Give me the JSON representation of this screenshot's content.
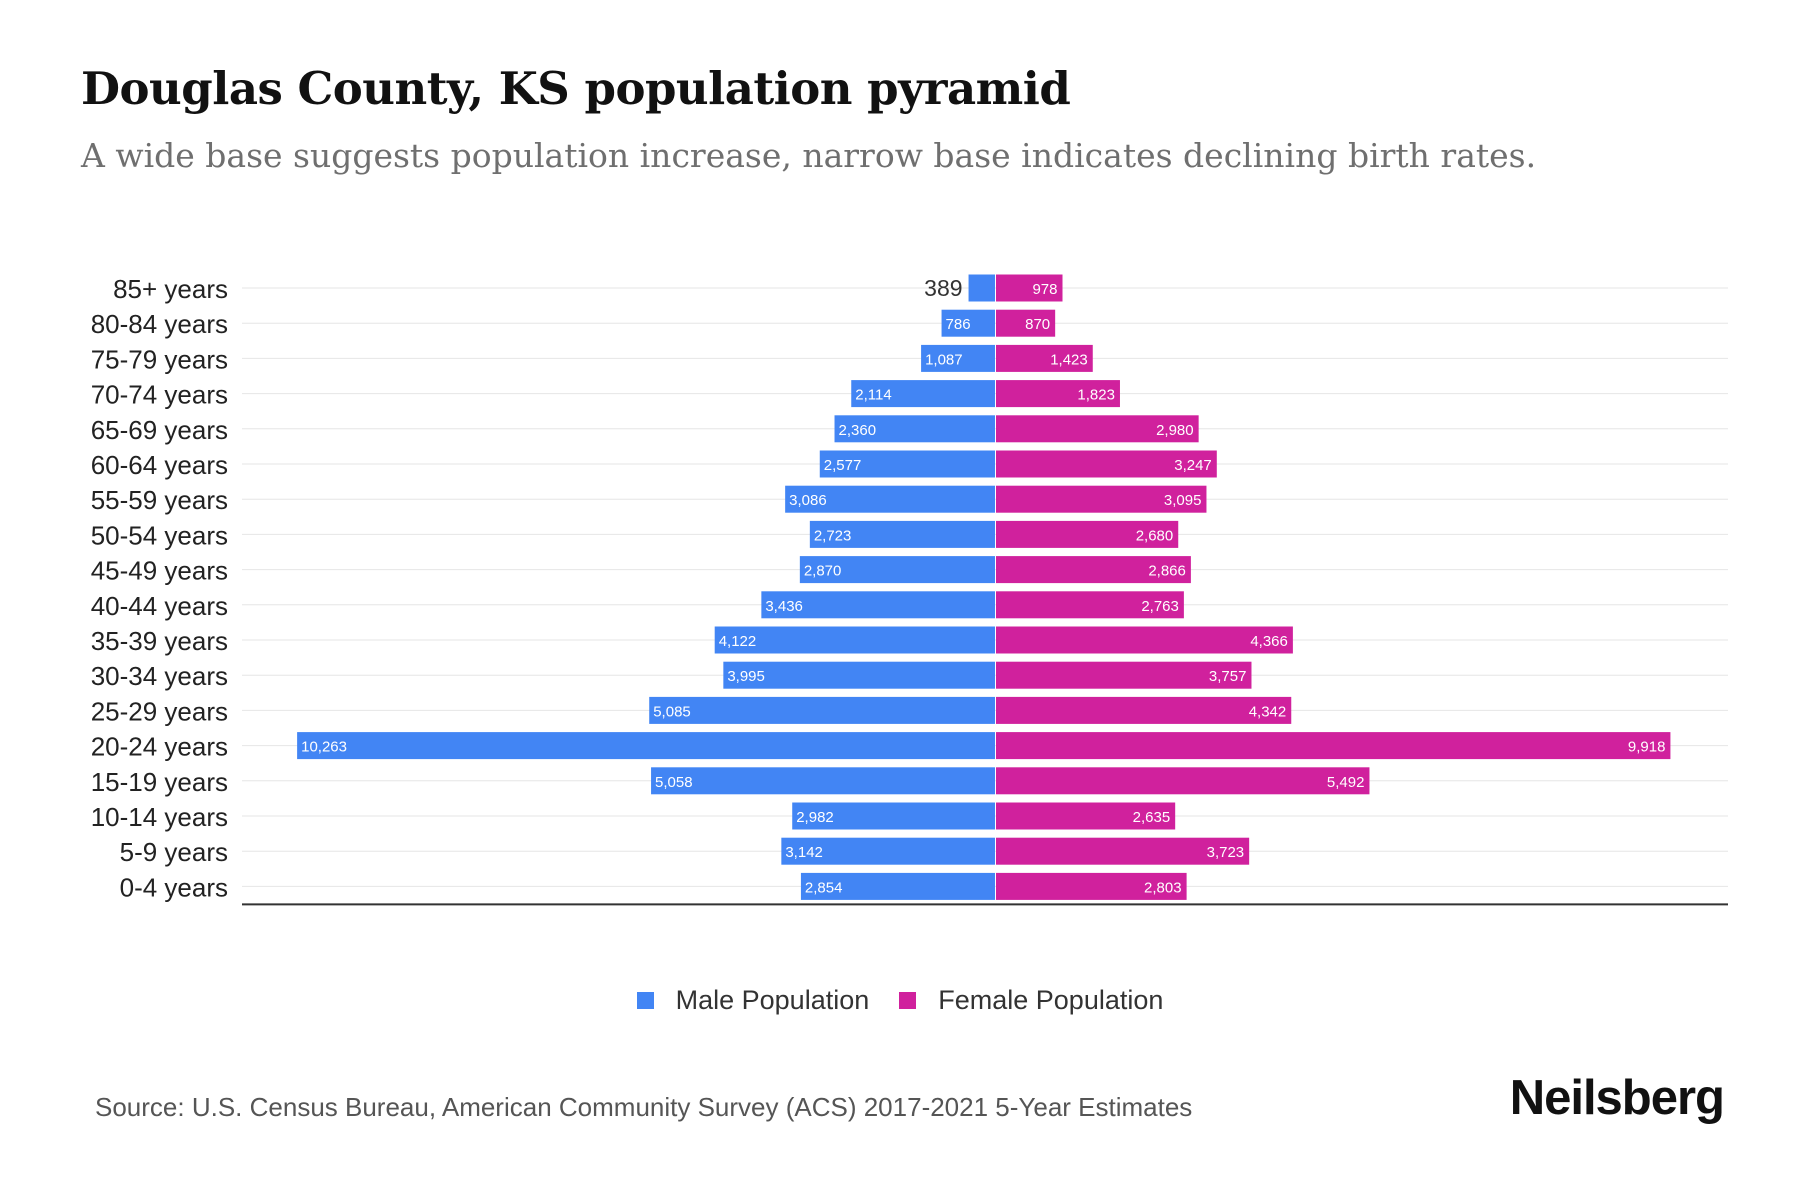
{
  "title": "Douglas County, KS population pyramid",
  "subtitle": "A wide base suggests population increase, narrow base indicates declining birth rates.",
  "source": "Source: U.S. Census Bureau, American Community Survey (ACS) 2017-2021 5-Year Estimates",
  "brand": "Neilsberg",
  "colors": {
    "male": "#4285f4",
    "female": "#d0219d",
    "grid": "#e6e6e6",
    "axis": "#333333"
  },
  "chart_data": {
    "type": "bar",
    "orientation": "horizontal",
    "categories": [
      "85+ years",
      "80-84 years",
      "75-79 years",
      "70-74 years",
      "65-69 years",
      "60-64 years",
      "55-59 years",
      "50-54 years",
      "45-49 years",
      "40-44 years",
      "35-39 years",
      "30-34 years",
      "25-29 years",
      "20-24 years",
      "15-19 years",
      "10-14 years",
      "5-9 years",
      "0-4 years"
    ],
    "series": [
      {
        "name": "Male Population",
        "color": "#4285f4",
        "values": [
          389,
          786,
          1087,
          2114,
          2360,
          2577,
          3086,
          2723,
          2870,
          3436,
          4122,
          3995,
          5085,
          10263,
          5058,
          2982,
          3142,
          2854
        ]
      },
      {
        "name": "Female Population",
        "color": "#d0219d",
        "values": [
          978,
          870,
          1423,
          1823,
          2980,
          3247,
          3095,
          2680,
          2866,
          2763,
          4366,
          3757,
          4342,
          9918,
          5492,
          2635,
          3723,
          2803
        ]
      }
    ],
    "data_labels": {
      "male": [
        "389",
        "786",
        "1,087",
        "2,114",
        "2,360",
        "2,577",
        "3,086",
        "2,723",
        "2,870",
        "3,436",
        "4,122",
        "3,995",
        "5,085",
        "10,263",
        "5,058",
        "2,982",
        "3,142",
        "2,854"
      ],
      "female": [
        "978",
        "870",
        "1,423",
        "1,823",
        "2,980",
        "3,247",
        "3,095",
        "2,680",
        "2,866",
        "2,763",
        "4,366",
        "3,757",
        "4,342",
        "9,918",
        "5,492",
        "2,635",
        "3,723",
        "2,803"
      ]
    },
    "xlim": [
      -11400,
      11400
    ],
    "grid": true,
    "legend": "bottom-center"
  }
}
